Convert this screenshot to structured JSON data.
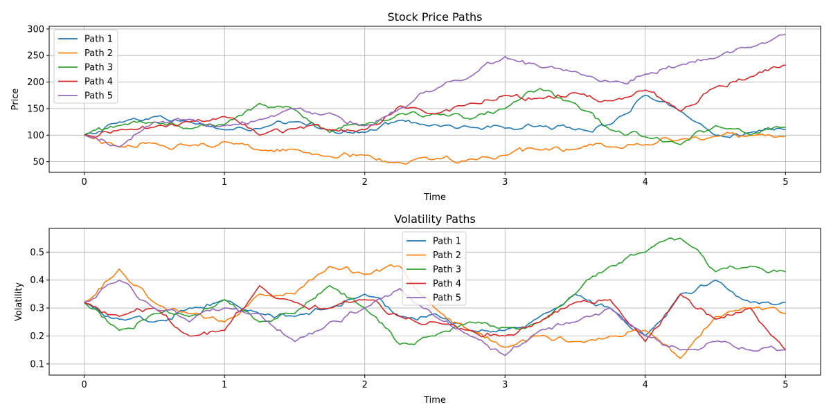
{
  "chart_data": [
    {
      "type": "line",
      "title": "Stock Price Paths",
      "xlabel": "Time",
      "ylabel": "Price",
      "xlim": [
        -0.25,
        5.25
      ],
      "ylim": [
        30,
        305
      ],
      "xticks": [
        0,
        1,
        2,
        3,
        4,
        5
      ],
      "yticks": [
        50,
        100,
        150,
        200,
        250,
        300
      ],
      "grid": true,
      "legend_position": "upper-left",
      "x": [
        0,
        0.25,
        0.5,
        0.75,
        1.0,
        1.25,
        1.5,
        1.75,
        2.0,
        2.25,
        2.5,
        2.75,
        3.0,
        3.25,
        3.5,
        3.75,
        4.0,
        4.25,
        4.5,
        4.75,
        5.0
      ],
      "series": [
        {
          "name": "Path 1",
          "color": "#1f77b4",
          "values": [
            100,
            125,
            135,
            125,
            110,
            112,
            125,
            110,
            105,
            128,
            120,
            115,
            113,
            118,
            110,
            120,
            175,
            145,
            100,
            105,
            110
          ]
        },
        {
          "name": "Path 2",
          "color": "#ff7f0e",
          "values": [
            100,
            78,
            85,
            80,
            88,
            72,
            73,
            60,
            62,
            48,
            55,
            55,
            62,
            72,
            73,
            78,
            82,
            92,
            98,
            100,
            98
          ]
        },
        {
          "name": "Path 3",
          "color": "#2ca02c",
          "values": [
            100,
            118,
            125,
            112,
            120,
            160,
            148,
            105,
            120,
            140,
            140,
            130,
            150,
            188,
            160,
            110,
            97,
            82,
            118,
            100,
            115
          ]
        },
        {
          "name": "Path 4",
          "color": "#d62728",
          "values": [
            100,
            110,
            115,
            125,
            135,
            100,
            112,
            110,
            110,
            155,
            140,
            160,
            175,
            170,
            180,
            165,
            185,
            145,
            190,
            210,
            232
          ]
        },
        {
          "name": "Path 5",
          "color": "#9467bd",
          "values": [
            100,
            78,
            125,
            130,
            118,
            130,
            150,
            142,
            118,
            150,
            185,
            210,
            248,
            228,
            220,
            200,
            215,
            232,
            245,
            265,
            290
          ]
        }
      ]
    },
    {
      "type": "line",
      "title": "Volatility Paths",
      "xlabel": "Time",
      "ylabel": "Volatility",
      "xlim": [
        -0.25,
        5.25
      ],
      "ylim": [
        0.06,
        0.585
      ],
      "xticks": [
        0,
        1,
        2,
        3,
        4,
        5
      ],
      "yticks": [
        0.1,
        0.2,
        0.3,
        0.4,
        0.5
      ],
      "grid": true,
      "legend_position": "upper-center",
      "x": [
        0,
        0.25,
        0.5,
        0.75,
        1.0,
        1.25,
        1.5,
        1.75,
        2.0,
        2.25,
        2.5,
        2.75,
        3.0,
        3.25,
        3.5,
        3.75,
        4.0,
        4.25,
        4.5,
        4.75,
        5.0
      ],
      "series": [
        {
          "name": "Path 1",
          "color": "#1f77b4",
          "values": [
            0.32,
            0.26,
            0.25,
            0.3,
            0.33,
            0.28,
            0.27,
            0.3,
            0.35,
            0.27,
            0.28,
            0.22,
            0.22,
            0.27,
            0.35,
            0.3,
            0.2,
            0.35,
            0.4,
            0.32,
            0.32
          ]
        },
        {
          "name": "Path 2",
          "color": "#ff7f0e",
          "values": [
            0.32,
            0.44,
            0.32,
            0.28,
            0.25,
            0.35,
            0.35,
            0.45,
            0.42,
            0.45,
            0.3,
            0.22,
            0.16,
            0.2,
            0.18,
            0.2,
            0.22,
            0.12,
            0.27,
            0.3,
            0.28
          ]
        },
        {
          "name": "Path 3",
          "color": "#2ca02c",
          "values": [
            0.32,
            0.22,
            0.28,
            0.27,
            0.33,
            0.25,
            0.28,
            0.38,
            0.3,
            0.17,
            0.2,
            0.25,
            0.23,
            0.25,
            0.35,
            0.45,
            0.5,
            0.55,
            0.43,
            0.45,
            0.43
          ]
        },
        {
          "name": "Path 4",
          "color": "#d62728",
          "values": [
            0.32,
            0.27,
            0.3,
            0.2,
            0.22,
            0.38,
            0.32,
            0.3,
            0.33,
            0.27,
            0.25,
            0.22,
            0.2,
            0.25,
            0.32,
            0.33,
            0.18,
            0.35,
            0.26,
            0.3,
            0.15
          ]
        },
        {
          "name": "Path 5",
          "color": "#9467bd",
          "values": [
            0.32,
            0.4,
            0.3,
            0.25,
            0.3,
            0.28,
            0.18,
            0.25,
            0.3,
            0.37,
            0.27,
            0.2,
            0.13,
            0.22,
            0.25,
            0.3,
            0.2,
            0.15,
            0.18,
            0.15,
            0.15
          ]
        }
      ]
    }
  ]
}
